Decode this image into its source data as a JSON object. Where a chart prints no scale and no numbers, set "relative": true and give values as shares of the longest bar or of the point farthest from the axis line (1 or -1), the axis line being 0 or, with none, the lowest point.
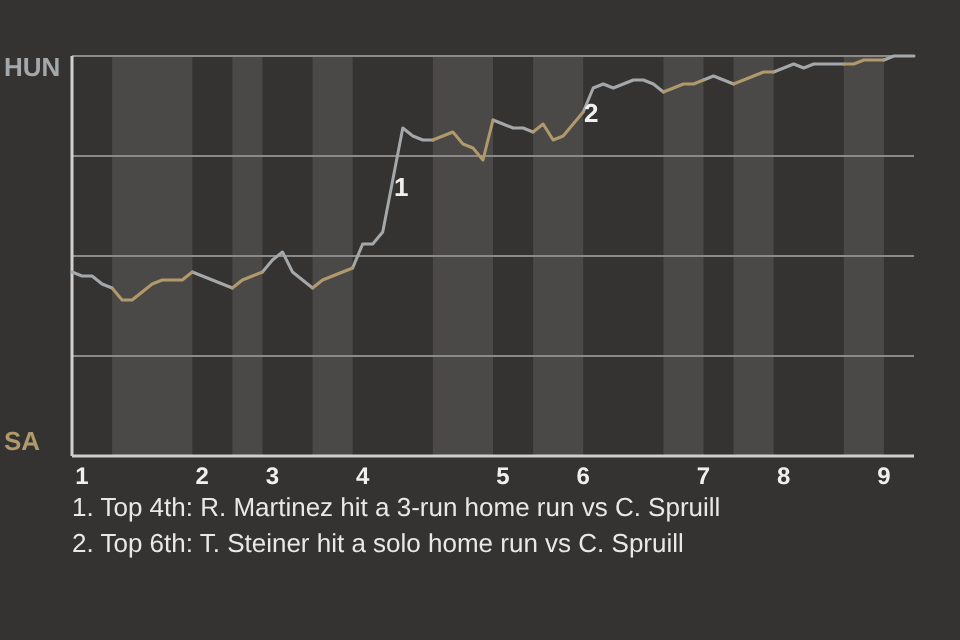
{
  "chart_data": {
    "type": "line",
    "relative": true,
    "categories": [
      null,
      "1",
      null,
      null,
      null,
      null,
      null,
      null,
      null,
      null,
      null,
      null,
      null,
      "2",
      null,
      null,
      null,
      null,
      null,
      null,
      "3",
      null,
      null,
      null,
      null,
      null,
      null,
      null,
      null,
      "4",
      null,
      null,
      null,
      null,
      null,
      null,
      null,
      null,
      null,
      null,
      null,
      null,
      null,
      "5",
      null,
      null,
      null,
      null,
      null,
      null,
      null,
      "6",
      null,
      null,
      null,
      null,
      null,
      null,
      null,
      null,
      null,
      null,
      null,
      "7",
      null,
      null,
      null,
      null,
      null,
      null,
      null,
      "8",
      null,
      null,
      null,
      null,
      null,
      null,
      null,
      null,
      null,
      "9",
      null,
      null,
      null
    ],
    "grid": "y",
    "legend": "left",
    "marker": "none",
    "line_style": "solid",
    "series": [
      {
        "name": "HUN",
        "color": "#a4a8ab",
        "values": [
          0.46,
          0.45,
          0.45,
          0.43,
          0.42,
          null,
          null,
          null,
          null,
          null,
          null,
          null,
          0.46,
          0.45,
          0.44,
          0.43,
          0.42,
          null,
          null,
          0.46,
          0.49,
          0.51,
          0.46,
          0.44,
          0.42,
          null,
          null,
          null,
          0.47,
          0.53,
          0.53,
          0.56,
          0.69,
          0.82,
          0.8,
          0.79,
          0.79,
          null,
          null,
          null,
          null,
          null,
          0.84,
          0.83,
          0.82,
          0.82,
          0.81,
          null,
          null,
          null,
          null,
          0.86,
          0.92,
          0.93,
          0.92,
          0.93,
          0.94,
          0.94,
          0.93,
          0.91,
          null,
          null,
          null,
          0.94,
          0.95,
          0.94,
          0.93,
          null,
          null,
          null,
          0.96,
          0.97,
          0.98,
          0.97,
          0.98,
          0.98,
          0.98,
          0.98,
          null,
          null,
          null,
          0.99,
          1,
          1,
          1
        ]
      },
      {
        "name": "SA",
        "color": "#b09a6c",
        "values": [
          null,
          null,
          null,
          null,
          0.42,
          0.39,
          0.39,
          0.41,
          0.43,
          0.44,
          0.44,
          0.44,
          0.46,
          null,
          null,
          null,
          0.42,
          0.44,
          0.45,
          0.46,
          null,
          null,
          null,
          null,
          0.42,
          0.44,
          0.45,
          0.46,
          0.47,
          null,
          null,
          null,
          null,
          null,
          null,
          null,
          0.79,
          0.8,
          0.81,
          0.78,
          0.77,
          0.74,
          0.84,
          null,
          null,
          null,
          0.81,
          0.83,
          0.79,
          0.8,
          0.83,
          0.86,
          null,
          null,
          null,
          null,
          null,
          null,
          null,
          0.91,
          0.92,
          0.93,
          0.93,
          0.94,
          null,
          null,
          0.93,
          0.94,
          0.95,
          0.96,
          0.96,
          null,
          null,
          null,
          null,
          null,
          null,
          0.98,
          0.98,
          0.99,
          0.99,
          0.99,
          null,
          null,
          null
        ]
      }
    ],
    "annotations": [
      "1",
      "2",
      "1. Top 4th: R. Martinez hit a 3-run home run vs C. Spruill",
      "2. Top 6th: T. Steiner hit a solo home run vs C. Spruill"
    ]
  }
}
